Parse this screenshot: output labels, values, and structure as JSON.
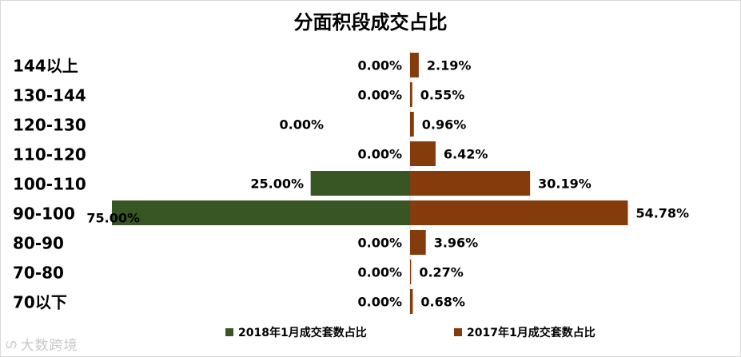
{
  "chart_data": {
    "type": "bar",
    "title": "分面积段成交占比",
    "categories": [
      "144以上",
      "130-144",
      "120-130",
      "110-120",
      "100-110",
      "90-100",
      "80-90",
      "70-80",
      "70以下"
    ],
    "series": [
      {
        "name": "2018年1月成交套数占比",
        "color": "#375623",
        "values": [
          0,
          0,
          0,
          0,
          25.0,
          75.0,
          0,
          0,
          0
        ],
        "labels": [
          "0.00%",
          "0.00%",
          "0.00%",
          "0.00%",
          "25.00%",
          "75.00%",
          "0.00%",
          "0.00%",
          "0.00%"
        ],
        "direction": "left"
      },
      {
        "name": "2017年1月成交套数占比",
        "color": "#843c0c",
        "values": [
          2.19,
          0.55,
          0.96,
          6.42,
          30.19,
          54.78,
          3.96,
          0.27,
          0.68
        ],
        "labels": [
          "2.19%",
          "0.55%",
          "0.96%",
          "6.42%",
          "30.19%",
          "54.78%",
          "3.96%",
          "0.27%",
          "0.68%"
        ],
        "direction": "right"
      }
    ],
    "xlim": [
      -75,
      75
    ],
    "grid": false,
    "legend_position": "bottom"
  },
  "watermark": {
    "icon": "chat-bubble-icon",
    "text": "大数跨境"
  }
}
